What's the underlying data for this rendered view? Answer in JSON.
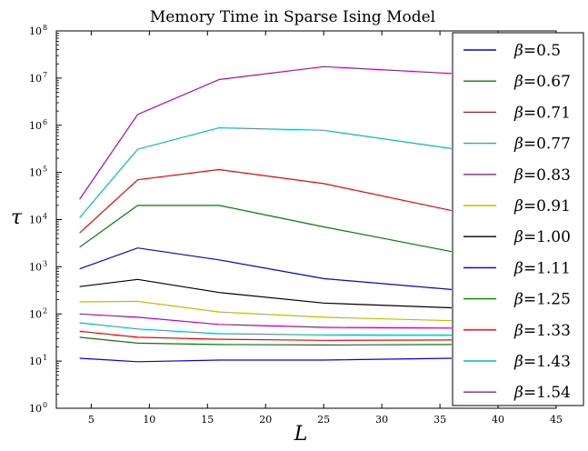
{
  "chart_data": {
    "type": "line",
    "title": "Memory Time in Sparse Ising Model",
    "xlabel": "L",
    "ylabel": "τ",
    "xlim": [
      2,
      45
    ],
    "ylim": [
      1,
      100000000
    ],
    "yscale": "log",
    "x_ticks": [
      5,
      10,
      15,
      20,
      25,
      30,
      35,
      40,
      45
    ],
    "y_tick_exponents": [
      0,
      1,
      2,
      3,
      4,
      5,
      6,
      7,
      8
    ],
    "y_tick_base": "10",
    "legend_position": "right",
    "legend_symbol": "β",
    "legend_eq": "=",
    "grid": false,
    "x": [
      4,
      9,
      16,
      25,
      36
    ],
    "series": [
      {
        "name": "0.5",
        "color": "#0000ff",
        "values": [
          11.5,
          9.7,
          10.5,
          10.5,
          11.5
        ]
      },
      {
        "name": "0.67",
        "color": "#008000",
        "values": [
          32,
          24,
          22.5,
          22,
          22.5
        ]
      },
      {
        "name": "0.71",
        "color": "#ff0000",
        "values": [
          43,
          32,
          29,
          27.5,
          28
        ]
      },
      {
        "name": "0.77",
        "color": "#00bfbf",
        "values": [
          65,
          48,
          38,
          36,
          35.5
        ]
      },
      {
        "name": "0.83",
        "color": "#bf00bf",
        "values": [
          100,
          85,
          60,
          52,
          50
        ]
      },
      {
        "name": "0.91",
        "color": "#bfbf00",
        "values": [
          180,
          185,
          110,
          85,
          72
        ]
      },
      {
        "name": "1.00",
        "color": "#000000",
        "values": [
          380,
          540,
          285,
          170,
          135
        ]
      },
      {
        "name": "1.11",
        "color": "#0000ff",
        "values": [
          900,
          2500,
          1400,
          560,
          330
        ]
      },
      {
        "name": "1.25",
        "color": "#008000",
        "values": [
          2600,
          20000,
          20000,
          7000,
          2100
        ]
      },
      {
        "name": "1.33",
        "color": "#ff0000",
        "values": [
          5200,
          70000,
          115000,
          58000,
          15500
        ]
      },
      {
        "name": "1.43",
        "color": "#00bfbf",
        "values": [
          11000,
          310000,
          880000,
          780000,
          320000
        ]
      },
      {
        "name": "1.54",
        "color": "#bf00bf",
        "values": [
          27000,
          1700000,
          9300000,
          17500000,
          12500000
        ]
      }
    ]
  }
}
